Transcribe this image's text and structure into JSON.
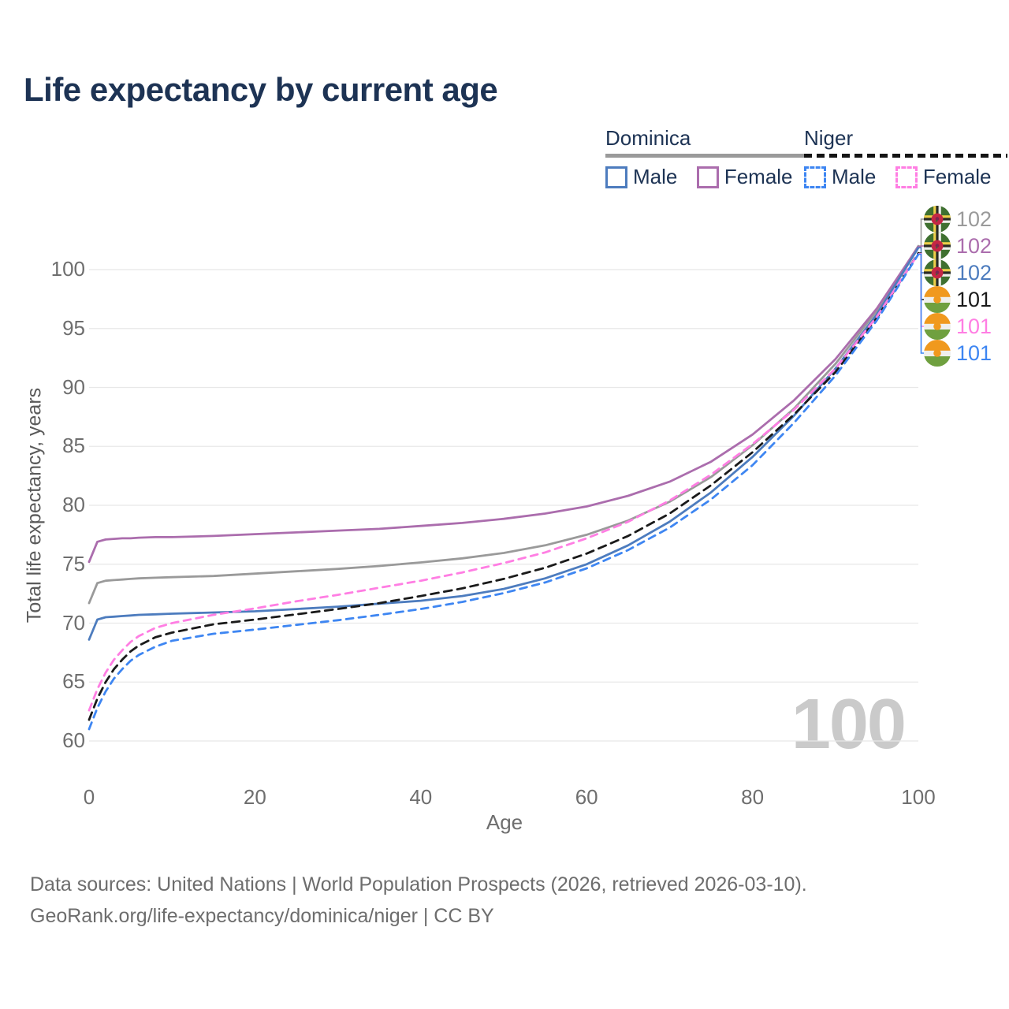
{
  "title": "Life expectancy by current age",
  "watermark": "100",
  "legend": {
    "groups": [
      {
        "country": "Dominica",
        "underline": {
          "color": "#9a9a9a",
          "dashed": false
        },
        "entries": [
          {
            "label": "Male",
            "color": "#4d7cbe",
            "dashed": false
          },
          {
            "label": "Female",
            "color": "#ab6dad",
            "dashed": false
          }
        ]
      },
      {
        "country": "Niger",
        "underline": {
          "color": "#141414",
          "dashed": true
        },
        "entries": [
          {
            "label": "Male",
            "color": "#3e86f2",
            "dashed": true
          },
          {
            "label": "Female",
            "color": "#ff7ee3",
            "dashed": true
          }
        ]
      }
    ]
  },
  "chart_data": {
    "type": "line",
    "title": "Life expectancy by current age",
    "xlabel": "Age",
    "ylabel": "Total life expectancy, years",
    "xlim": [
      0,
      100
    ],
    "ylim": [
      60,
      103
    ],
    "x_ticks": [
      0,
      20,
      40,
      60,
      80,
      100
    ],
    "y_ticks": [
      60,
      65,
      70,
      75,
      80,
      85,
      90,
      95,
      100
    ],
    "grid": "horizontal",
    "legend_position": "top-right",
    "x": [
      0,
      1,
      2,
      3,
      4,
      5,
      6,
      8,
      10,
      15,
      20,
      25,
      30,
      35,
      40,
      45,
      50,
      55,
      60,
      65,
      70,
      75,
      80,
      85,
      90,
      95,
      100
    ],
    "series": [
      {
        "name": "Dominica (both sexes)",
        "color": "#9a9a9a",
        "dash": null,
        "row": 0,
        "end_label": "102",
        "flag": "dominica",
        "values": [
          71.7,
          73.4,
          73.6,
          73.65,
          73.7,
          73.75,
          73.8,
          73.85,
          73.9,
          74.0,
          74.2,
          74.4,
          74.6,
          74.85,
          75.15,
          75.5,
          75.95,
          76.6,
          77.5,
          78.7,
          80.3,
          82.4,
          85.1,
          88.2,
          92.0,
          96.5,
          102.0
        ]
      },
      {
        "name": "Dominica Female",
        "color": "#ab6dad",
        "dash": null,
        "row": 1,
        "end_label": "102",
        "flag": "dominica",
        "values": [
          75.2,
          76.9,
          77.1,
          77.15,
          77.2,
          77.2,
          77.25,
          77.3,
          77.3,
          77.4,
          77.55,
          77.7,
          77.85,
          78.0,
          78.25,
          78.5,
          78.85,
          79.3,
          79.9,
          80.8,
          82.0,
          83.7,
          86.0,
          88.9,
          92.4,
          96.7,
          101.95
        ]
      },
      {
        "name": "Dominica Male",
        "color": "#4d7cbe",
        "dash": null,
        "row": 2,
        "end_label": "102",
        "flag": "dominica",
        "values": [
          68.6,
          70.3,
          70.5,
          70.55,
          70.6,
          70.65,
          70.7,
          70.75,
          70.8,
          70.9,
          71.0,
          71.2,
          71.4,
          71.65,
          71.9,
          72.3,
          72.9,
          73.8,
          75.0,
          76.6,
          78.6,
          81.1,
          84.1,
          87.6,
          91.6,
          96.2,
          101.85
        ]
      },
      {
        "name": "Niger (both sexes)",
        "color": "#1a1a1a",
        "dash": "10 7",
        "row": 3,
        "end_label": "101",
        "flag": "niger",
        "values": [
          61.8,
          63.6,
          65.0,
          66.1,
          66.9,
          67.6,
          68.1,
          68.8,
          69.2,
          69.9,
          70.3,
          70.75,
          71.2,
          71.7,
          72.3,
          72.95,
          73.75,
          74.7,
          75.9,
          77.4,
          79.3,
          81.7,
          84.5,
          87.7,
          91.3,
          95.9,
          101.4
        ]
      },
      {
        "name": "Niger Female",
        "color": "#ff7ee3",
        "dash": "9 7",
        "row": 4,
        "end_label": "101",
        "flag": "niger",
        "values": [
          62.6,
          64.4,
          65.8,
          66.9,
          67.7,
          68.4,
          68.9,
          69.6,
          70.0,
          70.7,
          71.25,
          71.85,
          72.4,
          73.0,
          73.6,
          74.3,
          75.1,
          76.0,
          77.2,
          78.6,
          80.4,
          82.6,
          85.2,
          88.1,
          91.6,
          96.0,
          101.35
        ]
      },
      {
        "name": "Niger Male",
        "color": "#3e86f2",
        "dash": "9 7",
        "row": 5,
        "end_label": "101",
        "flag": "niger",
        "values": [
          61.0,
          62.8,
          64.2,
          65.3,
          66.1,
          66.8,
          67.3,
          68.0,
          68.5,
          69.1,
          69.45,
          69.85,
          70.25,
          70.7,
          71.2,
          71.8,
          72.55,
          73.45,
          74.65,
          76.2,
          78.1,
          80.5,
          83.4,
          87.0,
          91.0,
          95.7,
          101.3
        ]
      }
    ]
  },
  "source": {
    "line1": "Data sources: United Nations | World Population Prospects (2026, retrieved 2026-03-10).",
    "line2": "GeoRank.org/life-expectancy/dominica/niger | CC BY"
  },
  "colors": {
    "title_text": "#1d3354",
    "axis_text": "#6e6e6e",
    "gridline": "#e8e8e8",
    "watermark": "#cacaca",
    "source_text": "#6d6d6d"
  }
}
